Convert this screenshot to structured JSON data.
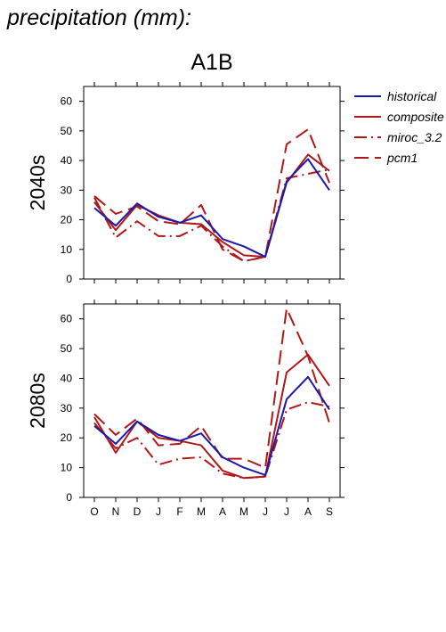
{
  "header": {
    "title": "precipitation (mm):"
  },
  "panel": {
    "title": "A1B"
  },
  "legend": [
    {
      "label": "historical",
      "color": "#1a1aaa",
      "dash": "solid"
    },
    {
      "label": "composite",
      "color": "#b01818",
      "dash": "solid"
    },
    {
      "label": "miroc_3.2",
      "color": "#b01818",
      "dash": "dashdot"
    },
    {
      "label": "pcm1",
      "color": "#b01818",
      "dash": "longdash"
    }
  ],
  "chart_data": [
    {
      "type": "line",
      "panel_label": "2040s",
      "categories": [
        "O",
        "N",
        "D",
        "J",
        "F",
        "M",
        "A",
        "M",
        "J",
        "J",
        "A",
        "S"
      ],
      "ylim": [
        0,
        65
      ],
      "yticks": [
        0,
        10,
        20,
        30,
        40,
        50,
        60
      ],
      "series": [
        {
          "name": "historical",
          "values": [
            24,
            18,
            25.5,
            21,
            19,
            21.5,
            13.5,
            11,
            7.5,
            33,
            40.5,
            30
          ]
        },
        {
          "name": "composite",
          "values": [
            26,
            16.5,
            25,
            21.5,
            19,
            18.5,
            12.5,
            8,
            7.5,
            32.5,
            42,
            36.5
          ]
        },
        {
          "name": "miroc_3.2",
          "values": [
            27.5,
            14,
            19.5,
            14.5,
            14.5,
            18,
            11,
            6,
            7.5,
            34,
            35.5,
            37
          ]
        },
        {
          "name": "pcm1",
          "values": [
            28,
            22,
            24.5,
            19.5,
            18.5,
            25,
            10,
            6,
            7.5,
            45.5,
            50.5,
            32.5
          ]
        }
      ]
    },
    {
      "type": "line",
      "panel_label": "2080s",
      "categories": [
        "O",
        "N",
        "D",
        "J",
        "F",
        "M",
        "A",
        "M",
        "J",
        "J",
        "A",
        "S"
      ],
      "ylim": [
        0,
        65
      ],
      "yticks": [
        0,
        10,
        20,
        30,
        40,
        50,
        60
      ],
      "series": [
        {
          "name": "historical",
          "values": [
            24,
            18,
            25.5,
            21,
            19,
            21.5,
            13.5,
            10,
            7.5,
            33,
            40.5,
            29.5
          ]
        },
        {
          "name": "composite",
          "values": [
            27,
            15,
            25.5,
            20,
            19,
            17.5,
            9,
            6.5,
            7,
            42,
            48,
            37.5
          ]
        },
        {
          "name": "miroc_3.2",
          "values": [
            25,
            16.5,
            20,
            11,
            13,
            13.5,
            8,
            6.5,
            7,
            29.5,
            32,
            30.5
          ]
        },
        {
          "name": "pcm1",
          "values": [
            28,
            21,
            26.5,
            17.5,
            18,
            24,
            13,
            13,
            10,
            63.5,
            47.5,
            25
          ]
        }
      ]
    }
  ]
}
